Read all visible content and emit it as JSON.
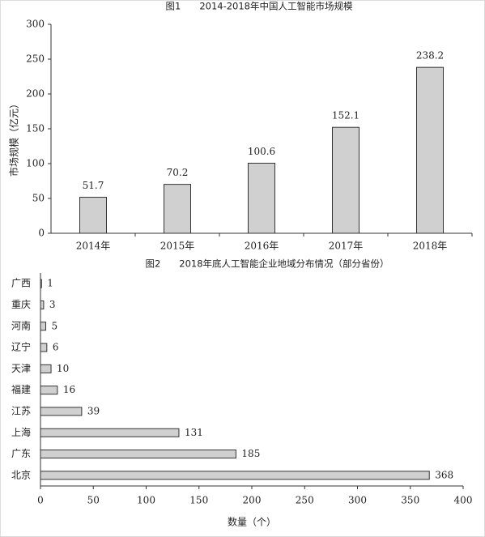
{
  "chart_data": [
    {
      "type": "bar",
      "title": "图1　　2014-2018年中国人工智能市场规模",
      "y_label": "市场规模（亿元）",
      "categories": [
        "2014年",
        "2015年",
        "2016年",
        "2017年",
        "2018年"
      ],
      "values": [
        51.7,
        70.2,
        100.6,
        152.1,
        238.2
      ],
      "color": "#d0d0d0",
      "ylim": [
        0,
        300
      ],
      "yticks": [
        0,
        50,
        100,
        150,
        200,
        250,
        300
      ],
      "grid": false
    },
    {
      "type": "barh",
      "title": "图2　　2018年底人工智能企业地域分布情况（部分省份）",
      "x_label": "数量（个）",
      "categories": [
        "广西",
        "重庆",
        "河南",
        "辽宁",
        "天津",
        "福建",
        "江苏",
        "上海",
        "广东",
        "北京"
      ],
      "values": [
        1,
        3,
        5,
        6,
        10,
        16,
        39,
        131,
        185,
        368
      ],
      "color": "#d0d0d0",
      "xlim": [
        0,
        400
      ],
      "xticks": [
        0,
        50,
        100,
        150,
        200,
        250,
        300,
        350,
        400
      ],
      "grid": false
    }
  ]
}
